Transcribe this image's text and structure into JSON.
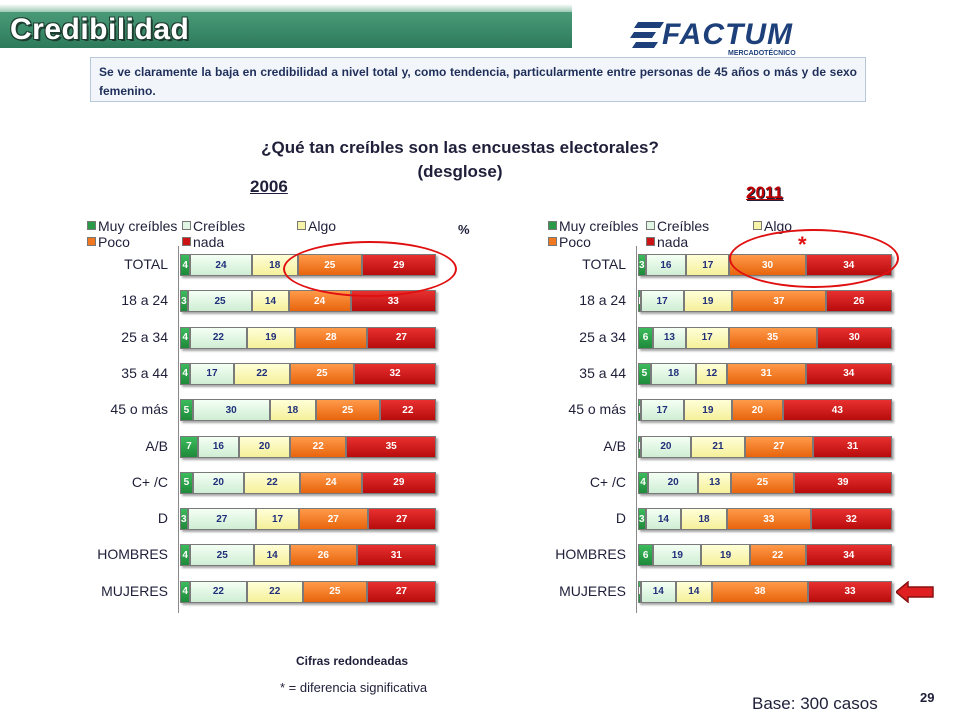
{
  "header": {
    "title": "Credibilidad"
  },
  "logo": {
    "name": "FACTUM",
    "tagline": "MERCADOTÉCNICO"
  },
  "note": "Se ve claramente la baja en credibilidad a nivel total y, como tendencia, particularmente entre personas de 45 años o más y de sexo femenino.",
  "question": {
    "line1": "¿Qué tan creíbles son las encuestas electorales?",
    "line2": "(desglose)"
  },
  "unit": "%",
  "legend": [
    "Muy creíbles",
    "Creíbles",
    "Algo",
    "Poco",
    "nada"
  ],
  "colors": {
    "muy_creibles": "#2a9a48",
    "creibles": "#e0f5e4",
    "algo": "#f7f3a8",
    "poco": "#f07820",
    "nada": "#cc1414",
    "highlight": "#e01010",
    "title_band": "#3a8a68"
  },
  "footer": {
    "rounded": "Cifras redondeadas",
    "significance": "* = diferencia significativa",
    "base": "Base: 300 casos",
    "page": "29"
  },
  "significance_mark": "*",
  "chart_data": [
    {
      "type": "bar",
      "orientation": "horizontal",
      "stacked": true,
      "title": "2006",
      "categories": [
        "TOTAL",
        "18 a 24",
        "25 a 34",
        "35 a 44",
        "45 o más",
        "A/B",
        "C+ /C",
        "D",
        "HOMBRES",
        "MUJERES"
      ],
      "series": [
        {
          "name": "Muy creíbles",
          "values": [
            4,
            3,
            4,
            4,
            5,
            7,
            5,
            3,
            4,
            4
          ]
        },
        {
          "name": "Creíbles",
          "values": [
            24,
            25,
            22,
            17,
            30,
            16,
            20,
            27,
            25,
            22
          ]
        },
        {
          "name": "Algo",
          "values": [
            18,
            14,
            19,
            22,
            18,
            20,
            22,
            17,
            14,
            22
          ]
        },
        {
          "name": "Poco",
          "values": [
            25,
            24,
            28,
            25,
            25,
            22,
            24,
            27,
            26,
            25
          ]
        },
        {
          "name": "nada",
          "values": [
            29,
            33,
            27,
            32,
            22,
            35,
            29,
            27,
            31,
            27
          ]
        }
      ],
      "legend_position": "top"
    },
    {
      "type": "bar",
      "orientation": "horizontal",
      "stacked": true,
      "title": "2011",
      "categories": [
        "TOTAL",
        "18 a 24",
        "25 a 34",
        "35 a 44",
        "45 o más",
        "A/B",
        "C+ /C",
        "D",
        "HOMBRES",
        "MUJERES"
      ],
      "series": [
        {
          "name": "Muy creíbles",
          "values": [
            3,
            1,
            6,
            5,
            1,
            1,
            4,
            3,
            6,
            1
          ]
        },
        {
          "name": "Creíbles",
          "values": [
            16,
            17,
            13,
            18,
            17,
            20,
            20,
            14,
            19,
            14
          ]
        },
        {
          "name": "Algo",
          "values": [
            17,
            19,
            17,
            12,
            19,
            21,
            13,
            18,
            19,
            14
          ]
        },
        {
          "name": "Poco",
          "values": [
            30,
            37,
            35,
            31,
            20,
            27,
            25,
            33,
            22,
            38
          ]
        },
        {
          "name": "nada",
          "values": [
            34,
            26,
            30,
            34,
            43,
            31,
            39,
            32,
            34,
            33
          ]
        }
      ],
      "legend_position": "top"
    }
  ]
}
